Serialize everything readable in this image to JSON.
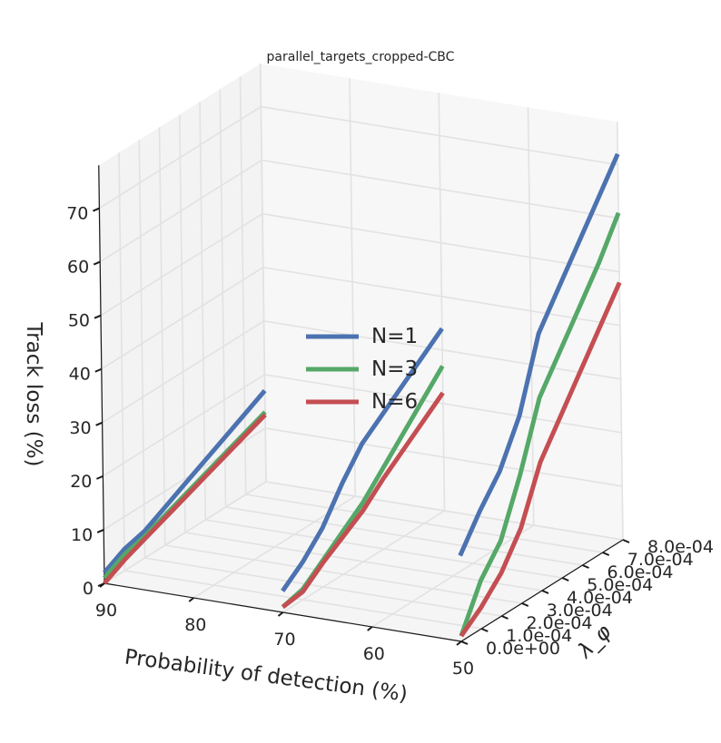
{
  "chart_data": {
    "type": "line",
    "projection": "3d",
    "title": "parallel_targets_cropped-CBC",
    "xlabel": "Probability of detection (%)",
    "ylabel": "λ_φ",
    "zlabel": "Track loss (%)",
    "xlim": [
      50,
      90
    ],
    "ylim": [
      0,
      0.0008
    ],
    "zlim": [
      0,
      75
    ],
    "x_ticks": [
      "90",
      "80",
      "70",
      "60",
      "50"
    ],
    "y_ticks": [
      "0.0e+00",
      "1.0e-04",
      "2.0e-04",
      "3.0e-04",
      "4.0e-04",
      "5.0e-04",
      "6.0e-04",
      "7.0e-04",
      "8.0e-04"
    ],
    "z_ticks": [
      "0",
      "10",
      "20",
      "30",
      "40",
      "50",
      "60",
      "70"
    ],
    "grid": true,
    "legend_position": "center",
    "series": [
      {
        "name": "N=1",
        "color": "#4c72b0",
        "segments": [
          {
            "pd": 90,
            "lambda": [
              0,
              0.0001,
              0.0002,
              0.0003,
              0.0004,
              0.0005,
              0.0006,
              0.0007,
              0.0008
            ],
            "loss": [
              2,
              4,
              5,
              7,
              9,
              11,
              13,
              15,
              17
            ]
          },
          {
            "pd": 70,
            "lambda": [
              0,
              0.0001,
              0.0002,
              0.0003,
              0.0004,
              0.0005,
              0.0006,
              0.0007,
              0.0008
            ],
            "loss": [
              4,
              7,
              11,
              17,
              22,
              25,
              28,
              31,
              34
            ]
          },
          {
            "pd": 50,
            "lambda": [
              0,
              0.0001,
              0.0002,
              0.0003,
              0.0004,
              0.0005,
              0.0006,
              0.0007,
              0.0008
            ],
            "loss": [
              16,
              22,
              27,
              35,
              48,
              54,
              60,
              66,
              72
            ]
          }
        ]
      },
      {
        "name": "N=3",
        "color": "#55a868",
        "segments": [
          {
            "pd": 90,
            "lambda": [
              0,
              0.0001,
              0.0002,
              0.0003,
              0.0004,
              0.0005,
              0.0006,
              0.0007,
              0.0008
            ],
            "loss": [
              1,
              3,
              4,
              5.5,
              7,
              8.5,
              10,
              11.5,
              13
            ]
          },
          {
            "pd": 70,
            "lambda": [
              0,
              0.0001,
              0.0002,
              0.0003,
              0.0004,
              0.0005,
              0.0006,
              0.0007,
              0.0008
            ],
            "loss": [
              1,
              2,
              5,
              8,
              11,
              15,
              19,
              23,
              27
            ]
          },
          {
            "pd": 50,
            "lambda": [
              0,
              0.0001,
              0.0002,
              0.0003,
              0.0004,
              0.0005,
              0.0006,
              0.0007,
              0.0008
            ],
            "loss": [
              1,
              9,
              14,
              24,
              36,
              42,
              48,
              54,
              61
            ]
          }
        ]
      },
      {
        "name": "N=6",
        "color": "#c44e52",
        "segments": [
          {
            "pd": 90,
            "lambda": [
              0,
              0.0001,
              0.0002,
              0.0003,
              0.0004,
              0.0005,
              0.0006,
              0.0007,
              0.0008
            ],
            "loss": [
              0,
              2,
              3.5,
              5,
              6.5,
              8,
              9.5,
              11,
              12.5
            ]
          },
          {
            "pd": 70,
            "lambda": [
              0,
              0.0001,
              0.0002,
              0.0003,
              0.0004,
              0.0005,
              0.0006,
              0.0007,
              0.0008
            ],
            "loss": [
              1,
              1.5,
              4.5,
              7,
              9.5,
              13,
              16,
              19,
              22
            ]
          },
          {
            "pd": 50,
            "lambda": [
              0,
              0.0001,
              0.0002,
              0.0003,
              0.0004,
              0.0005,
              0.0006,
              0.0007,
              0.0008
            ],
            "loss": [
              1,
              4,
              8,
              14,
              24,
              30,
              36,
              42,
              48
            ]
          }
        ]
      }
    ]
  }
}
